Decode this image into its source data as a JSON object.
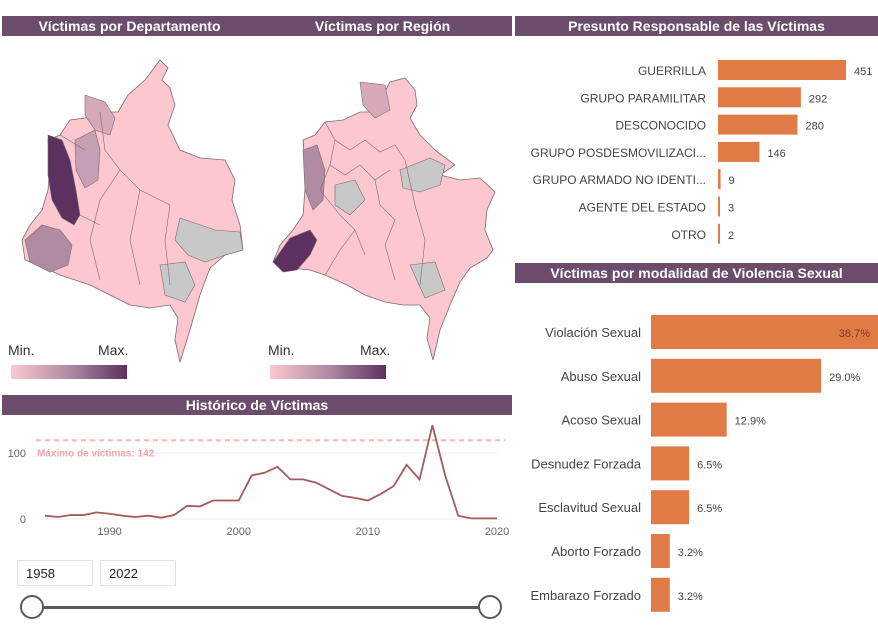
{
  "headers": {
    "departamento": "Víctimas por Departamento",
    "region": "Víctimas por Región",
    "responsable": "Presunto Responsable de las Víctimas",
    "historico": "Histórico de Víctimas",
    "modalidad": "Víctimas por modalidad de Violencia Sexual"
  },
  "map_legend": {
    "min": "Min.",
    "max": "Max."
  },
  "colors": {
    "header_bg": "#6b4d6b",
    "bar": "#e07b46",
    "line": "#a45a5a",
    "max_line": "#f4b6b6",
    "map_low": "#fcc7cf",
    "map_high": "#5c3160",
    "map_nodata": "#c8c8c8"
  },
  "filters": {
    "year_from": "1958",
    "year_to": "2022"
  },
  "chart_data": [
    {
      "type": "bar",
      "title": "Presunto Responsable de las Víctimas",
      "orientation": "horizontal",
      "categories": [
        "GUERRILLA",
        "GRUPO PARAMILITAR",
        "DESCONOCIDO",
        "GRUPO POSDESMOVILIZACI...",
        "GRUPO ARMADO NO IDENTI...",
        "AGENTE DEL ESTADO",
        "OTRO"
      ],
      "values": [
        451,
        292,
        280,
        146,
        9,
        3,
        2
      ],
      "data_labels": [
        "451",
        "292",
        "280",
        "146",
        "9",
        "3",
        "2"
      ]
    },
    {
      "type": "bar",
      "title": "Víctimas por modalidad de Violencia Sexual",
      "orientation": "horizontal",
      "categories": [
        "Violación Sexual",
        "Abuso Sexual",
        "Acoso Sexual",
        "Desnudez Forzada",
        "Esclavitud Sexual",
        "Aborto Forzado",
        "Embarazo Forzado"
      ],
      "values": [
        38.7,
        29.0,
        12.9,
        6.5,
        6.5,
        3.2,
        3.2
      ],
      "data_labels": [
        "38.7%",
        "29.0%",
        "12.9%",
        "6.5%",
        "6.5%",
        "3.2%",
        "3.2%"
      ]
    },
    {
      "type": "line",
      "title": "Histórico de Víctimas",
      "x": [
        1985,
        1986,
        1987,
        1988,
        1989,
        1990,
        1991,
        1992,
        1993,
        1994,
        1995,
        1996,
        1997,
        1998,
        1999,
        2000,
        2001,
        2002,
        2003,
        2004,
        2005,
        2006,
        2007,
        2008,
        2009,
        2010,
        2011,
        2012,
        2013,
        2014,
        2015,
        2016,
        2017,
        2018,
        2019,
        2020
      ],
      "values": [
        5,
        3,
        6,
        6,
        10,
        8,
        5,
        3,
        5,
        2,
        6,
        20,
        19,
        28,
        28,
        28,
        66,
        70,
        79,
        60,
        60,
        55,
        45,
        35,
        32,
        28,
        38,
        50,
        82,
        60,
        142,
        65,
        5,
        1,
        1,
        1
      ],
      "xticks": [
        "1990",
        "2000",
        "2010",
        "2020"
      ],
      "yticks": [
        "0",
        "100"
      ],
      "xlim": [
        1985,
        2020
      ],
      "ylim": [
        0,
        150
      ],
      "reference_line": {
        "value": 142,
        "label": "Máximo de víctimas: 142"
      }
    }
  ]
}
